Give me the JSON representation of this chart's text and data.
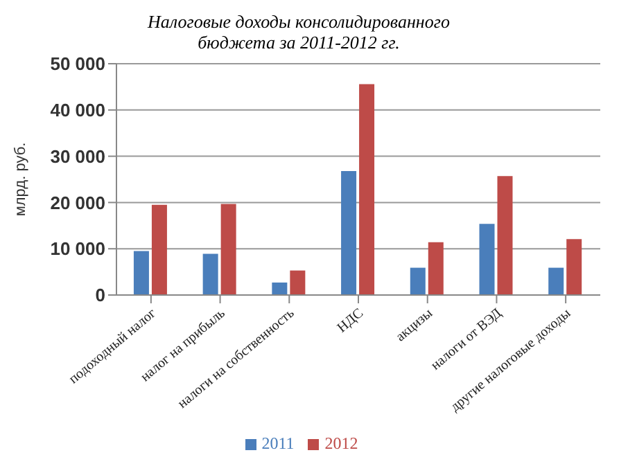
{
  "chart_data": {
    "type": "bar",
    "title": "Налоговые доходы консолидированного бюджета за 2011-2012 гг.",
    "ylabel": "млрд. руб.",
    "categories": [
      "подоходный налог",
      "налог на прибыль",
      "налоги на собственность",
      "НДС",
      "акцизы",
      "налоги от ВЭД",
      "другие налоговые доходы"
    ],
    "series": [
      {
        "name": "2011",
        "color": "#4a7ebb",
        "values": [
          9500,
          8900,
          2700,
          26800,
          5900,
          15400,
          5900
        ]
      },
      {
        "name": "2012",
        "color": "#be4b48",
        "values": [
          19500,
          19700,
          5300,
          45600,
          11400,
          25700,
          12100
        ]
      }
    ],
    "ylim": [
      0,
      50000
    ],
    "yticks": [
      {
        "value": 0,
        "label": "0"
      },
      {
        "value": 10000,
        "label": "10 000"
      },
      {
        "value": 20000,
        "label": "20 000"
      },
      {
        "value": 30000,
        "label": "30 000"
      },
      {
        "value": 40000,
        "label": "40 000"
      },
      {
        "value": 50000,
        "label": "50 000"
      }
    ],
    "grid": "y",
    "legend": "bottom"
  }
}
